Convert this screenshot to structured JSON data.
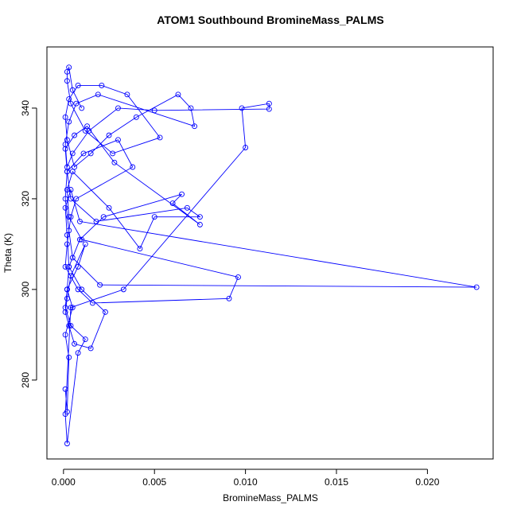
{
  "chart_data": {
    "type": "line",
    "title": "ATOM1 Southbound BromineMass_PALMS",
    "x_label": "BromineMass_PALMS",
    "y_label": "Theta (K)",
    "color": "#0000ff",
    "markers": true,
    "x": [
      0.0001,
      0.0002,
      0.0003,
      0.0001,
      0.0005,
      0.0002,
      0.0008,
      0.0012,
      0.0004,
      0.0002,
      0.0001,
      0.0003,
      0.0006,
      0.0015,
      0.0023,
      0.001,
      0.0003,
      0.0002,
      0.0001,
      0.0004,
      0.0009,
      0.0227,
      0.002,
      0.0005,
      0.0003,
      0.0001,
      0.0002,
      0.0011,
      0.003,
      0.0038,
      0.0007,
      0.0004,
      0.0002,
      0.0001,
      0.0008,
      0.0016,
      0.0091,
      0.0096,
      0.001,
      0.0003,
      0.0002,
      0.0005,
      0.0025,
      0.0042,
      0.005,
      0.0075,
      0.0068,
      0.0018,
      0.0004,
      0.0002,
      0.0001,
      0.0006,
      0.0013,
      0.0028,
      0.0075,
      0.006,
      0.0065,
      0.0022,
      0.0009,
      0.0003,
      0.0002,
      0.0001,
      0.0004,
      0.0012,
      0.0008,
      0.0002,
      0.0001,
      0.0004,
      0.0033,
      0.01,
      0.0098,
      0.0113,
      0.0113,
      0.005,
      0.003,
      0.0014,
      0.0005,
      0.0002,
      0.0001,
      0.0003,
      0.0007,
      0.0019,
      0.0072,
      0.007,
      0.0063,
      0.004,
      0.0025,
      0.0015,
      0.0006,
      0.0002,
      0.0001,
      0.0003,
      0.0008,
      0.0021,
      0.0035,
      0.0053,
      0.0027,
      0.0012,
      0.0004,
      0.0002,
      0.0002,
      0.0003,
      0.0005,
      0.001
    ],
    "values": [
      278,
      273,
      285,
      290,
      296,
      300,
      305,
      310,
      303,
      298,
      295,
      292,
      288,
      287,
      295,
      300,
      305,
      312,
      318,
      322,
      315,
      300.5,
      301,
      307,
      313,
      320,
      326,
      330,
      333,
      327,
      320,
      316,
      310,
      305,
      300,
      297,
      298,
      302.7,
      311,
      316,
      322,
      326,
      318,
      309,
      316,
      316,
      318,
      315,
      320,
      326,
      331,
      334,
      336,
      328,
      314.3,
      319,
      321,
      316,
      311,
      305,
      300,
      296,
      292,
      289,
      286,
      266,
      272.5,
      296,
      300,
      331.3,
      340,
      341,
      339.8,
      339.5,
      340,
      335,
      330,
      327,
      332,
      337,
      341,
      343,
      336,
      340,
      343,
      338,
      334,
      330,
      327,
      333,
      338,
      342,
      345,
      345,
      343,
      333.5,
      330,
      335,
      341,
      346,
      348,
      349,
      344,
      340
    ],
    "xlim": [
      -0.00091,
      0.02361
    ],
    "ylim": [
      262.6,
      353.5
    ],
    "xticks": [
      {
        "value": 0,
        "label": "0.000"
      },
      {
        "value": 0.005,
        "label": "0.005"
      },
      {
        "value": 0.01,
        "label": "0.010"
      },
      {
        "value": 0.015,
        "label": "0.015"
      },
      {
        "value": 0.02,
        "label": "0.020"
      }
    ],
    "yticks": [
      280,
      300,
      320,
      340
    ]
  }
}
